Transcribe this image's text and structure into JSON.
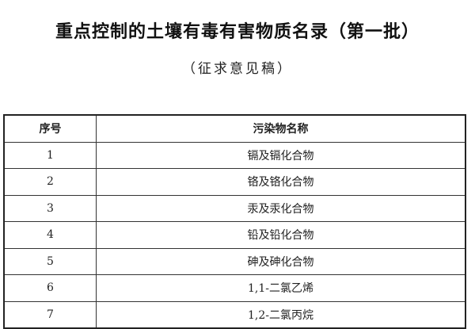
{
  "document": {
    "title": "重点控制的土壤有毒有害物质名录（第一批）",
    "subtitle": "（征求意见稿）",
    "table": {
      "headers": [
        "序号",
        "污染物名称"
      ],
      "rows": [
        [
          "1",
          "镉及镉化合物"
        ],
        [
          "2",
          "铬及铬化合物"
        ],
        [
          "3",
          "汞及汞化合物"
        ],
        [
          "4",
          "铅及铅化合物"
        ],
        [
          "5",
          "砷及砷化合物"
        ],
        [
          "6",
          "1,1-二氯乙烯"
        ],
        [
          "7",
          "1,2-二氯丙烷"
        ]
      ]
    }
  }
}
